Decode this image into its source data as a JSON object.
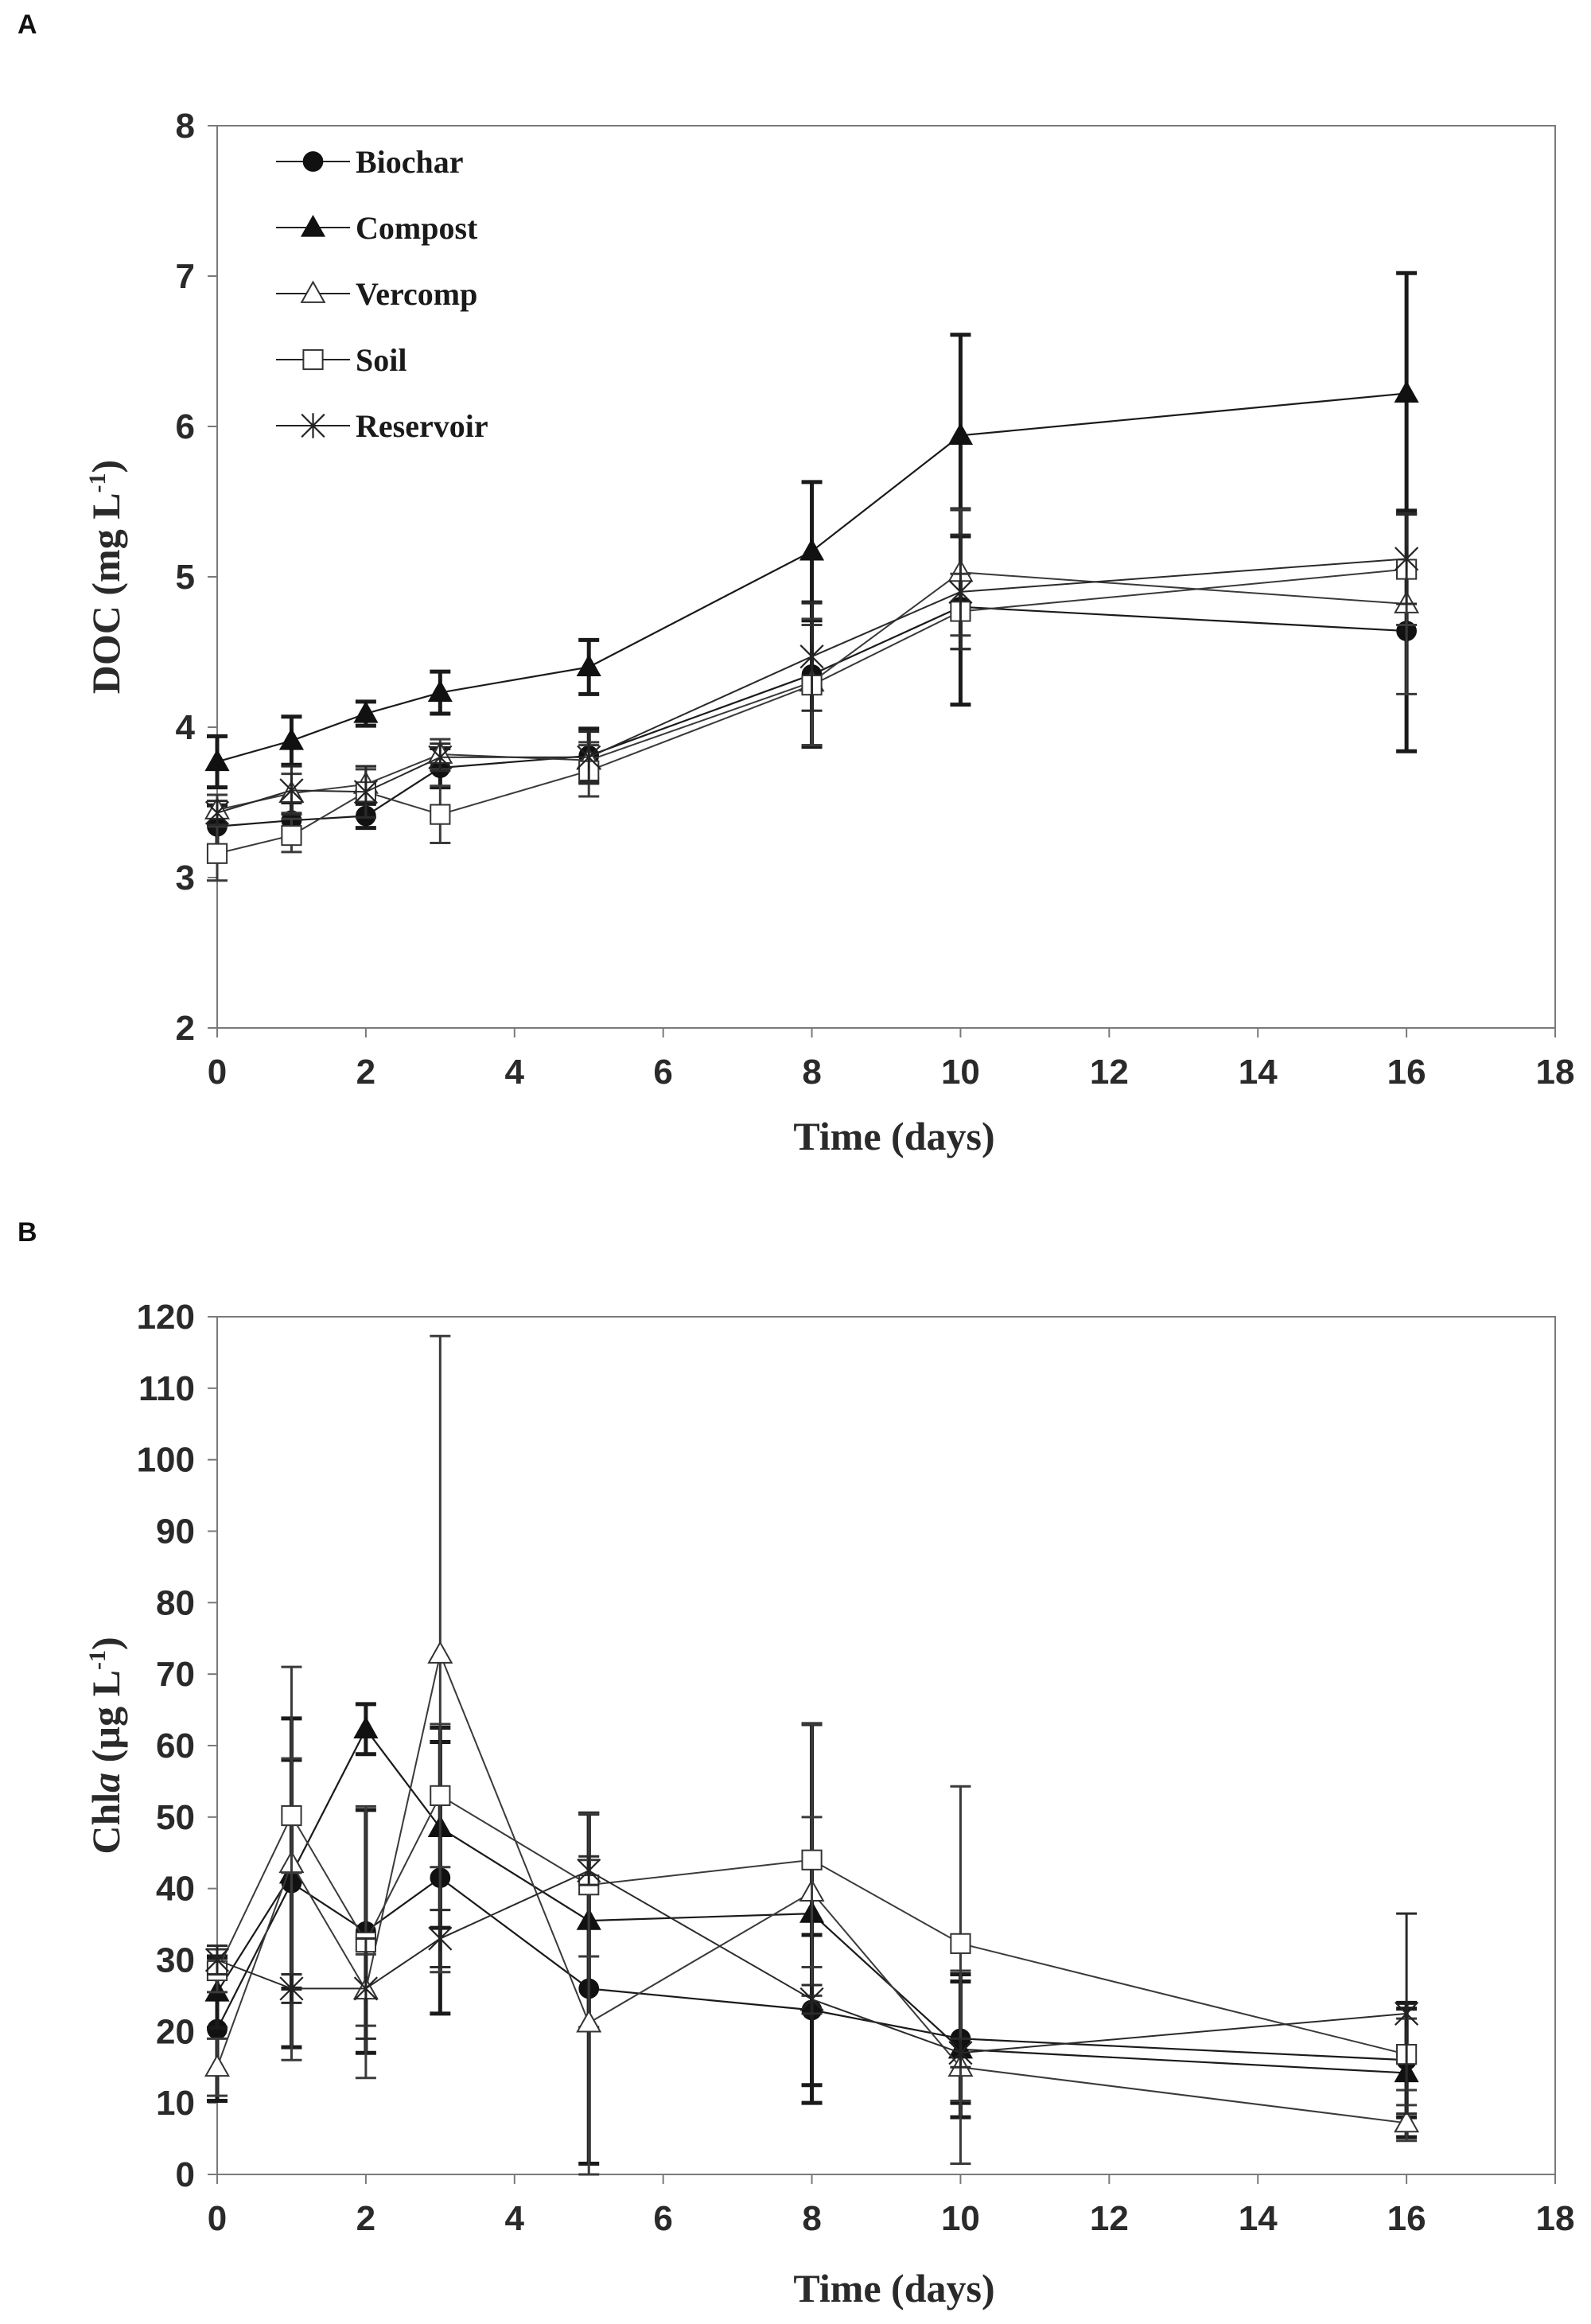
{
  "figure": {
    "panels": [
      "A",
      "B"
    ]
  },
  "chart_data": [
    {
      "type": "line",
      "panel_label": "A",
      "title": "",
      "xlabel": "Time (days)",
      "ylabel_main": "DOC (mg L",
      "ylabel_sup": "-1",
      "ylabel_end": ")",
      "xlim": [
        0,
        18
      ],
      "ylim": [
        2,
        8
      ],
      "xticks": [
        0,
        2,
        4,
        6,
        8,
        10,
        12,
        14,
        16,
        18
      ],
      "yticks": [
        2,
        3,
        4,
        5,
        6,
        7,
        8
      ],
      "grid": false,
      "legend_position": "top-left",
      "x": [
        0,
        1,
        2,
        3,
        5,
        8,
        10,
        16
      ],
      "series": [
        {
          "name": "Biochar",
          "marker": "filled-circle",
          "values": [
            3.34,
            3.38,
            3.41,
            3.73,
            3.81,
            4.35,
            4.8,
            4.64
          ],
          "errors": [
            0.14,
            0.12,
            0.08,
            0.13,
            0.18,
            0.48,
            0.65,
            0.8
          ]
        },
        {
          "name": "Compost",
          "marker": "filled-triangle",
          "values": [
            3.77,
            3.91,
            4.09,
            4.23,
            4.4,
            5.17,
            5.94,
            6.22
          ],
          "errors": [
            0.17,
            0.16,
            0.08,
            0.14,
            0.18,
            0.46,
            0.67,
            0.8
          ]
        },
        {
          "name": "Vercomp",
          "marker": "open-triangle",
          "values": [
            3.45,
            3.56,
            3.62,
            3.82,
            3.78,
            4.3,
            5.03,
            4.82
          ],
          "errors": [
            0.1,
            0.13,
            0.1,
            0.1,
            0.12,
            0.42,
            0.42,
            0.6
          ]
        },
        {
          "name": "Soil",
          "marker": "open-square",
          "values": [
            3.16,
            3.28,
            3.57,
            3.42,
            3.71,
            4.28,
            4.77,
            5.05
          ],
          "errors": [
            0.18,
            0.11,
            0.17,
            0.19,
            0.17,
            0.4,
            0.25,
            0.37
          ]
        },
        {
          "name": "Reservoir",
          "marker": "asterisk",
          "values": [
            3.43,
            3.58,
            3.57,
            3.8,
            3.8,
            4.47,
            4.9,
            5.12
          ],
          "errors": [
            0.08,
            0.16,
            0.17,
            0.09,
            0.17,
            0.36,
            0.38,
            0.3
          ]
        }
      ]
    },
    {
      "type": "line",
      "panel_label": "B",
      "title": "",
      "xlabel": "Time (days)",
      "ylabel_main": "Chl",
      "ylabel_italic": "a",
      "ylabel_rest": " (µg L",
      "ylabel_sup": "-1",
      "ylabel_end": ")",
      "xlim": [
        0,
        18
      ],
      "ylim": [
        0,
        120
      ],
      "xticks": [
        0,
        2,
        4,
        6,
        8,
        10,
        12,
        14,
        16,
        18
      ],
      "yticks": [
        0,
        10,
        20,
        30,
        40,
        50,
        60,
        70,
        80,
        90,
        100,
        110,
        120
      ],
      "grid": false,
      "legend_position": "none",
      "x": [
        0,
        1,
        2,
        3,
        5,
        8,
        10,
        16
      ],
      "series": [
        {
          "name": "Biochar",
          "marker": "filled-circle",
          "values": [
            20.3,
            40.8,
            34.0,
            41.5,
            26.0,
            23.0,
            19.0,
            16.0
          ],
          "errors": [
            10.0,
            23.0,
            17.0,
            19.0,
            24.5,
            10.5,
            9.0,
            8.0
          ]
        },
        {
          "name": "Compost",
          "marker": "filled-triangle",
          "values": [
            25.5,
            42.0,
            62.3,
            48.5,
            35.5,
            36.5,
            17.5,
            14.2
          ],
          "errors": [
            5.0,
            16.0,
            3.5,
            14.0,
            15.0,
            26.5,
            9.5,
            9.0
          ]
        },
        {
          "name": "Vercomp",
          "marker": "open-triangle",
          "values": [
            15.0,
            43.5,
            25.8,
            72.8,
            21.2,
            39.5,
            15.0,
            7.2
          ],
          "errors": [
            4.0,
            27.5,
            5.0,
            44.5,
            22.8,
            10.5,
            13.5,
            2.5
          ]
        },
        {
          "name": "Soil",
          "marker": "open-square",
          "values": [
            28.5,
            50.2,
            32.5,
            53.0,
            40.5,
            44.0,
            32.3,
            16.8
          ],
          "errors": [
            3.0,
            8.0,
            19.0,
            10.0,
            10.0,
            19.0,
            22.0,
            5.0
          ]
        },
        {
          "name": "Reservoir",
          "marker": "asterisk",
          "values": [
            30.0,
            26.0,
            26.0,
            33.0,
            42.5,
            24.5,
            17.0,
            22.5
          ],
          "errors": [
            2.0,
            2.0,
            7.0,
            4.0,
            2.0,
            2.0,
            2.0,
            14.0
          ]
        }
      ]
    }
  ]
}
